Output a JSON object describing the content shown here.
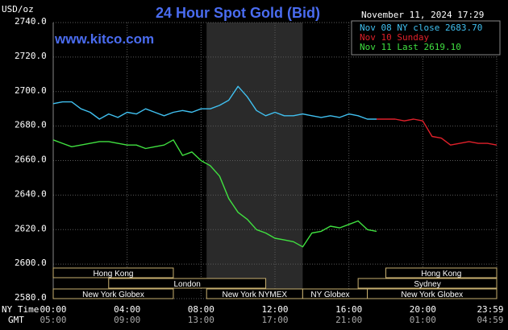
{
  "header": {
    "unit": "USD/oz",
    "title": "24 Hour Spot Gold (Bid)",
    "datetime": "November 11, 2024 17:29",
    "watermark": "www.kitco.com"
  },
  "legend": [
    {
      "label": "Nov 08 NY close 2683.70",
      "color": "#40c0f0"
    },
    {
      "label": "Nov 10 Sunday",
      "color": "#e0202a"
    },
    {
      "label": "Nov 11 Last 2619.10",
      "color": "#40e040"
    }
  ],
  "sessions": [
    {
      "label": "Hong Kong",
      "start": 0,
      "end": 6.5,
      "row": 0,
      "align": "center"
    },
    {
      "label": "Hong Kong",
      "start": 18,
      "end": 24,
      "row": 0,
      "align": "center"
    },
    {
      "label": "London",
      "start": 3,
      "end": 11.5,
      "row": 1,
      "align": "center"
    },
    {
      "label": "Sydney",
      "start": 16.5,
      "end": 24,
      "row": 1,
      "align": "center"
    },
    {
      "label": "New York Globex",
      "start": 0,
      "end": 6.5,
      "row": 2,
      "align": "center"
    },
    {
      "label": "New York NYMEX",
      "start": 8.3,
      "end": 13.5,
      "row": 2,
      "align": "center"
    },
    {
      "label": "NY Globex",
      "start": 13.5,
      "end": 17,
      "row": 2,
      "align": "left"
    },
    {
      "label": "New York Globex",
      "start": 17,
      "end": 24,
      "row": 2,
      "align": "center"
    }
  ],
  "axis_labels": {
    "ny_time": "NY Time",
    "gmt": "GMT"
  },
  "colors": {
    "background": "#000000",
    "grid": "#5a5a5a",
    "title": "#4a6cf0",
    "watermark": "#4a6cf0",
    "text": "#ffffff",
    "shade": "#2a2a2a",
    "session_border": "#c8b070"
  },
  "chart_data": {
    "type": "line",
    "ylim": [
      2580,
      2740
    ],
    "xlim": [
      0,
      24
    ],
    "y_ticks": [
      "2740.0",
      "2720.0",
      "2700.0",
      "2680.0",
      "2660.0",
      "2640.0",
      "2620.0",
      "2600.0",
      "2580.0"
    ],
    "y_tick_values": [
      2740,
      2720,
      2700,
      2680,
      2660,
      2640,
      2620,
      2600,
      2580
    ],
    "x_ticks_ny": [
      "00:00",
      "04:00",
      "08:00",
      "12:00",
      "16:00",
      "20:00",
      "23:59"
    ],
    "x_ticks_gmt": [
      "05:00",
      "09:00",
      "13:00",
      "17:00",
      "21:00",
      "01:00",
      "04:59"
    ],
    "x_tick_values": [
      0,
      4,
      8,
      12,
      16,
      20,
      24
    ],
    "shaded_range": [
      8.3,
      13.5
    ],
    "series": [
      {
        "name": "Nov 08 NY close 2683.70",
        "color": "#40c0f0",
        "points": [
          [
            0,
            2693
          ],
          [
            0.5,
            2694
          ],
          [
            1,
            2694
          ],
          [
            1.5,
            2690
          ],
          [
            2,
            2688
          ],
          [
            2.5,
            2684
          ],
          [
            3,
            2687
          ],
          [
            3.5,
            2685
          ],
          [
            4,
            2688
          ],
          [
            4.5,
            2687
          ],
          [
            5,
            2690
          ],
          [
            5.5,
            2688
          ],
          [
            6,
            2686
          ],
          [
            6.5,
            2688
          ],
          [
            7,
            2689
          ],
          [
            7.5,
            2688
          ],
          [
            8,
            2690
          ],
          [
            8.5,
            2690
          ],
          [
            9,
            2692
          ],
          [
            9.5,
            2695
          ],
          [
            10,
            2703
          ],
          [
            10.5,
            2697
          ],
          [
            11,
            2689
          ],
          [
            11.5,
            2686
          ],
          [
            12,
            2688
          ],
          [
            12.5,
            2686
          ],
          [
            13,
            2686
          ],
          [
            13.5,
            2687
          ],
          [
            14,
            2686
          ],
          [
            14.5,
            2685
          ],
          [
            15,
            2686
          ],
          [
            15.5,
            2685
          ],
          [
            16,
            2687
          ],
          [
            16.5,
            2686
          ],
          [
            17,
            2684
          ],
          [
            17.5,
            2684
          ]
        ]
      },
      {
        "name": "Nov 10 Sunday",
        "color": "#e0202a",
        "points": [
          [
            17.5,
            2684
          ],
          [
            18,
            2684
          ],
          [
            18.5,
            2684
          ],
          [
            19,
            2683
          ],
          [
            19.5,
            2684
          ],
          [
            20,
            2683
          ],
          [
            20.5,
            2674
          ],
          [
            21,
            2673
          ],
          [
            21.5,
            2669
          ],
          [
            22,
            2670
          ],
          [
            22.5,
            2671
          ],
          [
            23,
            2670
          ],
          [
            23.5,
            2670
          ],
          [
            24,
            2669
          ]
        ]
      },
      {
        "name": "Nov 11 Last 2619.10",
        "color": "#40e040",
        "points": [
          [
            0,
            2672
          ],
          [
            0.5,
            2670
          ],
          [
            1,
            2668
          ],
          [
            1.5,
            2669
          ],
          [
            2,
            2670
          ],
          [
            2.5,
            2671
          ],
          [
            3,
            2671
          ],
          [
            3.5,
            2670
          ],
          [
            4,
            2669
          ],
          [
            4.5,
            2669
          ],
          [
            5,
            2667
          ],
          [
            5.5,
            2668
          ],
          [
            6,
            2669
          ],
          [
            6.5,
            2672
          ],
          [
            7,
            2663
          ],
          [
            7.5,
            2665
          ],
          [
            8,
            2660
          ],
          [
            8.5,
            2657
          ],
          [
            9,
            2651
          ],
          [
            9.5,
            2638
          ],
          [
            10,
            2630
          ],
          [
            10.5,
            2626
          ],
          [
            11,
            2620
          ],
          [
            11.5,
            2618
          ],
          [
            12,
            2615
          ],
          [
            12.5,
            2614
          ],
          [
            13,
            2613
          ],
          [
            13.5,
            2610
          ],
          [
            14,
            2618
          ],
          [
            14.5,
            2619
          ],
          [
            15,
            2622
          ],
          [
            15.5,
            2621
          ],
          [
            16,
            2623
          ],
          [
            16.5,
            2625
          ],
          [
            17,
            2620
          ],
          [
            17.5,
            2619
          ]
        ]
      }
    ]
  }
}
